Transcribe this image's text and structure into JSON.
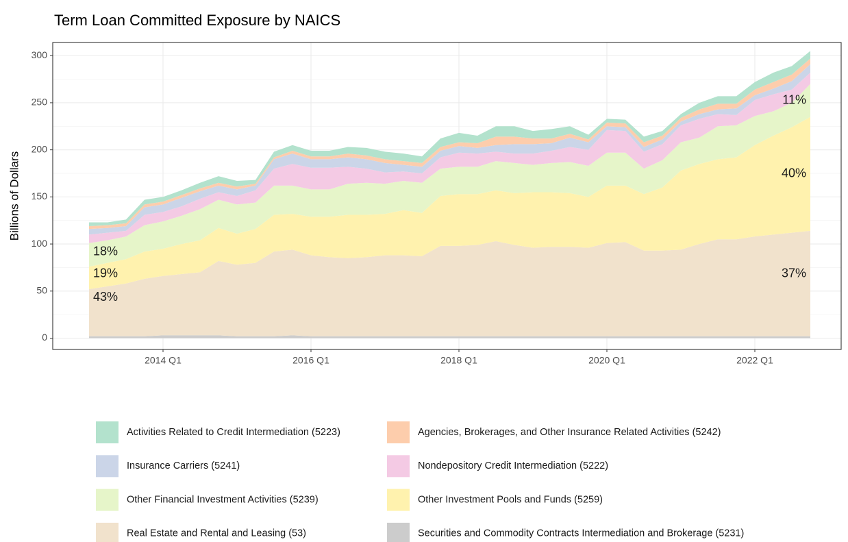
{
  "chart_data": {
    "type": "stacked_area",
    "title": "Term Loan Committed Exposure by NAICS",
    "y_label": "Billions of Dollars",
    "x": [
      "2013 Q1",
      "2013 Q2",
      "2013 Q3",
      "2013 Q4",
      "2014 Q1",
      "2014 Q2",
      "2014 Q3",
      "2014 Q4",
      "2015 Q1",
      "2015 Q2",
      "2015 Q3",
      "2015 Q4",
      "2016 Q1",
      "2016 Q2",
      "2016 Q3",
      "2016 Q4",
      "2017 Q1",
      "2017 Q2",
      "2017 Q3",
      "2017 Q4",
      "2018 Q1",
      "2018 Q2",
      "2018 Q3",
      "2018 Q4",
      "2019 Q1",
      "2019 Q2",
      "2019 Q3",
      "2019 Q4",
      "2020 Q1",
      "2020 Q2",
      "2020 Q3",
      "2020 Q4",
      "2021 Q1",
      "2021 Q2",
      "2021 Q3",
      "2021 Q4",
      "2022 Q1",
      "2022 Q2",
      "2022 Q3",
      "2022 Q4"
    ],
    "xticks": [
      "2014 Q1",
      "2016 Q1",
      "2018 Q1",
      "2020 Q1",
      "2022 Q1"
    ],
    "ylim": [
      -12,
      314
    ],
    "yticks": [
      0,
      50,
      100,
      150,
      200,
      250,
      300
    ],
    "grid": true,
    "series": [
      {
        "name": "Activities Related to Credit Intermediation (5223)",
        "color": "#b3e2cd",
        "values": [
          4,
          3,
          4,
          5,
          5,
          5,
          6,
          7,
          6,
          4,
          6,
          6,
          6,
          6,
          7,
          8,
          8,
          8,
          7,
          9,
          10,
          8,
          11,
          11,
          8,
          10,
          8,
          5,
          4,
          4,
          6,
          5,
          4,
          7,
          8,
          8,
          8,
          10,
          9,
          8
        ]
      },
      {
        "name": "Agencies, Brokerages, and Other Insurance Related Activities (5242)",
        "color": "#fdcdac",
        "values": [
          3,
          3,
          3,
          3,
          3,
          3,
          3,
          3,
          3,
          2,
          2,
          3,
          3,
          3,
          4,
          4,
          4,
          4,
          4,
          4,
          4,
          5,
          9,
          8,
          6,
          5,
          4,
          3,
          4,
          4,
          5,
          4,
          4,
          5,
          6,
          5,
          6,
          7,
          7,
          6
        ]
      },
      {
        "name": "Insurance Carriers (5241)",
        "color": "#cbd5e8",
        "values": [
          6,
          5,
          5,
          8,
          8,
          9,
          8,
          7,
          7,
          5,
          10,
          11,
          9,
          9,
          10,
          10,
          10,
          7,
          7,
          7,
          7,
          6,
          7,
          10,
          10,
          8,
          10,
          8,
          4,
          4,
          5,
          5,
          4,
          5,
          5,
          7,
          5,
          6,
          9,
          9
        ]
      },
      {
        "name": "Nondepository Credit Intermediation (5222)",
        "color": "#f4cae4",
        "values": [
          9,
          8,
          6,
          11,
          10,
          10,
          11,
          8,
          9,
          13,
          18,
          23,
          23,
          23,
          18,
          15,
          12,
          10,
          10,
          12,
          15,
          14,
          10,
          10,
          12,
          13,
          16,
          17,
          24,
          23,
          18,
          17,
          18,
          20,
          13,
          11,
          17,
          18,
          14,
          12
        ]
      },
      {
        "name": "Other Financial Investment Activities (5239)",
        "color": "#e6f5c9",
        "values": [
          25,
          24,
          24,
          28,
          29,
          30,
          33,
          30,
          31,
          28,
          31,
          30,
          29,
          29,
          33,
          34,
          32,
          31,
          32,
          29,
          29,
          29,
          31,
          32,
          29,
          31,
          33,
          33,
          35,
          35,
          27,
          29,
          30,
          28,
          35,
          34,
          31,
          26,
          26,
          35
        ]
      },
      {
        "name": "Other Investment Pools and Funds (5259)",
        "color": "#fff2ae",
        "values": [
          24,
          25,
          26,
          29,
          29,
          32,
          34,
          35,
          33,
          36,
          39,
          38,
          41,
          43,
          46,
          45,
          44,
          48,
          46,
          53,
          55,
          54,
          54,
          55,
          59,
          58,
          57,
          54,
          61,
          60,
          60,
          67,
          84,
          85,
          85,
          87,
          97,
          105,
          112,
          121
        ]
      },
      {
        "name": "Real Estate and Rental and Leasing (53)",
        "color": "#f1e2cc",
        "values": [
          50,
          53,
          56,
          61,
          63,
          65,
          67,
          79,
          76,
          78,
          90,
          91,
          86,
          84,
          83,
          84,
          86,
          86,
          85,
          96,
          96,
          97,
          101,
          97,
          94,
          95,
          95,
          94,
          99,
          100,
          91,
          91,
          92,
          98,
          103,
          103,
          106,
          108,
          110,
          112
        ]
      },
      {
        "name": "Securities and Commodity Contracts Intermediation and Brokerage (5231)",
        "color": "#cccccc",
        "values": [
          2,
          2,
          2,
          2,
          3,
          3,
          3,
          3,
          2,
          2,
          2,
          3,
          2,
          2,
          2,
          2,
          2,
          2,
          2,
          2,
          2,
          2,
          2,
          2,
          2,
          2,
          2,
          2,
          2,
          2,
          2,
          2,
          2,
          2,
          2,
          2,
          2,
          2,
          2,
          2
        ]
      }
    ],
    "annotations": [
      "18%",
      "19%",
      "43%",
      "11%",
      "40%",
      "37%"
    ]
  }
}
